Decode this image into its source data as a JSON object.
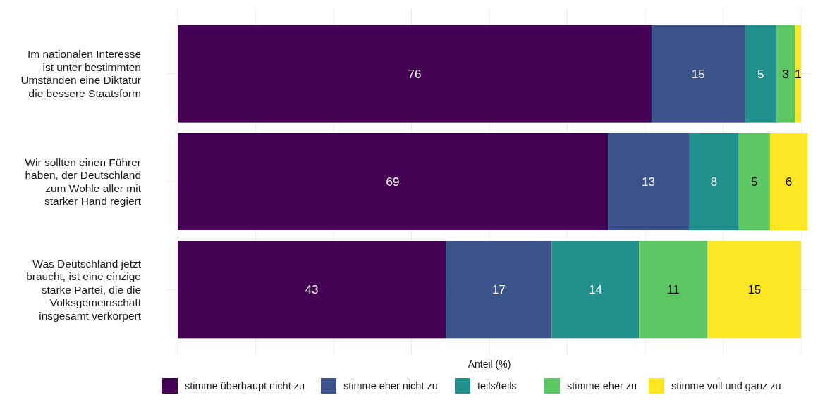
{
  "chart_data": {
    "type": "bar",
    "orientation": "horizontal",
    "stacked": true,
    "xlabel": "Anteil (%)",
    "categories": [
      "Im nationalen Interesse ist unter bestimmten Umständen eine Diktatur die bessere Staatsform",
      "Wir sollten einen Führer haben, der Deutschland zum Wohle aller mit starker Hand regiert",
      "Was Deutschland jetzt braucht, ist eine einzige starke Partei, die die Volksgemeinschaft insgesamt verkörpert"
    ],
    "series": [
      {
        "name": "stimme überhaupt nicht zu",
        "color": "#440154",
        "values": [
          76,
          69,
          43
        ]
      },
      {
        "name": "stimme eher nicht zu",
        "color": "#3b528b",
        "values": [
          15,
          13,
          17
        ]
      },
      {
        "name": "teils/teils",
        "color": "#21908c",
        "values": [
          5,
          8,
          14
        ]
      },
      {
        "name": "stimme eher zu",
        "color": "#5dc863",
        "values": [
          3,
          5,
          11
        ]
      },
      {
        "name": "stimme voll und ganz zu",
        "color": "#fde725",
        "values": [
          1,
          6,
          15
        ]
      }
    ],
    "xlim": [
      0,
      101
    ],
    "xticks": [
      {
        "value": 0,
        "label": null
      },
      {
        "value": 12.5,
        "label": null
      },
      {
        "value": 25,
        "label": null
      },
      {
        "value": 37.5,
        "label": null
      },
      {
        "value": 50,
        "label": null
      },
      {
        "value": 62.5,
        "label": null
      },
      {
        "value": 75,
        "label": null
      },
      {
        "value": 87.5,
        "label": null
      },
      {
        "value": 100,
        "label": null
      }
    ],
    "tick_labels": "y",
    "grid": true,
    "legend": "bottom",
    "data_labels": true
  }
}
